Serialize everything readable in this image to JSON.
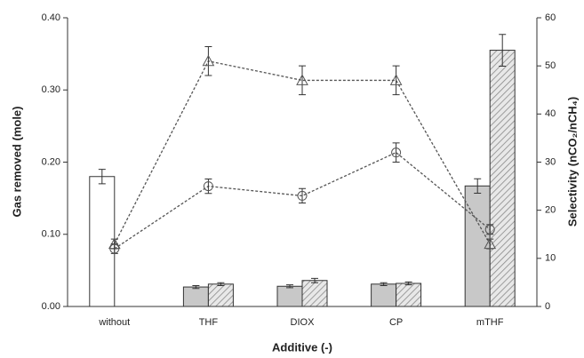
{
  "chart_data": {
    "type": "bar",
    "xlabel": "Additive (-)",
    "ylabel": "Gas removed (mole)",
    "y2label": "Selectivity (nCO₂/nCH₄)",
    "categories": [
      "without",
      "THF",
      "DIOX",
      "CP",
      "mTHF"
    ],
    "ylim": [
      0,
      0.4
    ],
    "yticks": [
      {
        "value": 0,
        "label": "0.00"
      },
      {
        "value": 0.1,
        "label": "0.10"
      },
      {
        "value": 0.2,
        "label": "0.20"
      },
      {
        "value": 0.3,
        "label": "0.30"
      },
      {
        "value": 0.4,
        "label": "0.40"
      }
    ],
    "y2lim": [
      0,
      60
    ],
    "y2ticks": [
      0,
      10,
      20,
      30,
      40,
      50,
      60
    ],
    "series": [
      {
        "type": "bar",
        "values": [
          0.18,
          0.027,
          0.028,
          0.031,
          0.167
        ],
        "errors": [
          0.01,
          0.002,
          0.002,
          0.002,
          0.01
        ],
        "colors": [
          "#ffffff",
          "#c8c8c8",
          "#c8c8c8",
          "#c8c8c8",
          "#c8c8c8"
        ]
      },
      {
        "type": "bar",
        "values": [
          null,
          0.031,
          0.036,
          0.032,
          0.355
        ],
        "errors": [
          null,
          0.002,
          0.003,
          0.002,
          0.022
        ],
        "color": "#e0e0e0",
        "pattern": "hatch"
      },
      {
        "type": "line",
        "axis": "y2",
        "marker": "triangle",
        "values": [
          13,
          51,
          47,
          47,
          13
        ],
        "errors": [
          1,
          3,
          3,
          3,
          1
        ],
        "color": "#555555",
        "dashed": true
      },
      {
        "type": "line",
        "axis": "y2",
        "marker": "circle",
        "values": [
          12,
          25,
          23,
          32,
          16
        ],
        "errors": [
          1,
          1.5,
          1.5,
          2,
          1
        ],
        "color": "#555555",
        "dashed": true
      }
    ]
  }
}
